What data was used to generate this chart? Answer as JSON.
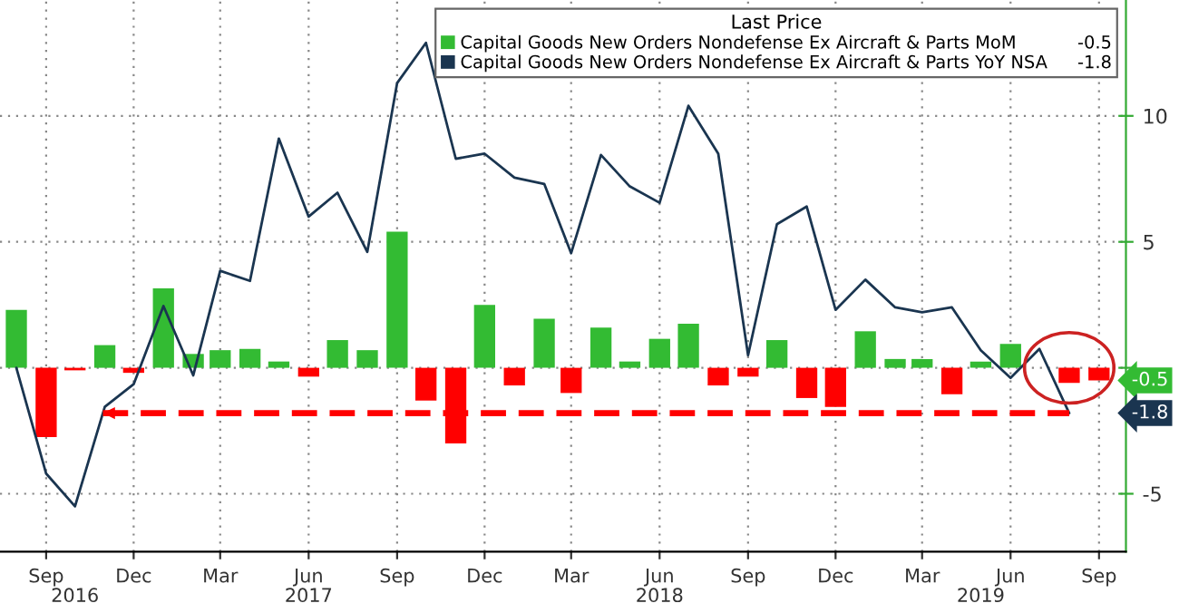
{
  "chart_data": {
    "type": "bar",
    "x": [
      "2016-08",
      "2016-09",
      "2016-10",
      "2016-11",
      "2016-12",
      "2017-01",
      "2017-02",
      "2017-03",
      "2017-04",
      "2017-05",
      "2017-06",
      "2017-07",
      "2017-08",
      "2017-09",
      "2017-10",
      "2017-11",
      "2017-12",
      "2018-01",
      "2018-02",
      "2018-03",
      "2018-04",
      "2018-05",
      "2018-06",
      "2018-07",
      "2018-08",
      "2018-09",
      "2018-10",
      "2018-11",
      "2018-12",
      "2019-01",
      "2019-02",
      "2019-03",
      "2019-04",
      "2019-05",
      "2019-06",
      "2019-07",
      "2019-08",
      "2019-09"
    ],
    "series": [
      {
        "name": "Capital Goods New Orders Nondefense Ex Aircraft & Parts MoM",
        "color": "#33bb33",
        "values": [
          2.3,
          -2.75,
          -0.1,
          0.9,
          -0.2,
          3.15,
          0.55,
          0.7,
          0.75,
          0.25,
          -0.35,
          1.1,
          0.7,
          5.4,
          -1.3,
          -3.0,
          2.5,
          -0.7,
          1.95,
          -1.0,
          1.6,
          0.25,
          1.15,
          1.75,
          -0.7,
          -0.35,
          1.1,
          -1.2,
          -1.55,
          1.45,
          0.35,
          0.35,
          -1.05,
          0.25,
          0.95,
          0.0,
          -0.6,
          -0.5
        ],
        "colors": [
          "#33bb33",
          "#ff0000",
          "#ff0000",
          "#33bb33",
          "#ff0000",
          "#33bb33",
          "#33bb33",
          "#33bb33",
          "#33bb33",
          "#33bb33",
          "#ff0000",
          "#33bb33",
          "#33bb33",
          "#33bb33",
          "#ff0000",
          "#ff0000",
          "#33bb33",
          "#ff0000",
          "#33bb33",
          "#ff0000",
          "#33bb33",
          "#33bb33",
          "#33bb33",
          "#33bb33",
          "#ff0000",
          "#ff0000",
          "#33bb33",
          "#ff0000",
          "#ff0000",
          "#33bb33",
          "#33bb33",
          "#33bb33",
          "#ff0000",
          "#33bb33",
          "#33bb33",
          "#33bb33",
          "#ff0000",
          "#ff0000"
        ],
        "value_labels": [
          null,
          null,
          null,
          null,
          null,
          null,
          null,
          null,
          null,
          null,
          null,
          null,
          null,
          null,
          null,
          null,
          null,
          null,
          null,
          null,
          null,
          null,
          null,
          null,
          null,
          null,
          null,
          null,
          null,
          null,
          null,
          null,
          null,
          null,
          null,
          null,
          null,
          null
        ]
      },
      {
        "name": "Capital Goods New Orders Nondefense Ex Aircraft & Parts YoY NSA",
        "type": "line",
        "color": "#1a3550",
        "x": [
          "2016-08",
          "2016-09",
          "2016-10",
          "2016-11",
          "2016-12",
          "2017-01",
          "2017-02",
          "2017-03",
          "2017-04",
          "2017-05",
          "2017-06",
          "2017-07",
          "2017-08",
          "2017-09",
          "2017-10",
          "2017-11",
          "2017-12",
          "2018-01",
          "2018-02",
          "2018-03",
          "2018-04",
          "2018-05",
          "2018-06",
          "2018-07",
          "2018-08",
          "2018-09",
          "2018-10",
          "2018-11",
          "2018-12",
          "2019-01",
          "2019-02",
          "2019-03",
          "2019-04",
          "2019-05",
          "2019-06",
          "2019-07",
          "2019-08"
        ],
        "values": [
          0.0,
          -4.2,
          -5.5,
          -1.55,
          -0.65,
          2.45,
          -0.3,
          3.85,
          3.45,
          9.1,
          6.0,
          6.95,
          4.6,
          11.3,
          12.9,
          8.3,
          8.5,
          7.55,
          7.3,
          4.55,
          8.45,
          7.2,
          6.55,
          10.4,
          8.5,
          0.5,
          5.7,
          6.4,
          2.3,
          3.5,
          2.4,
          2.2,
          2.4,
          0.7,
          -0.4,
          0.75,
          -1.8
        ],
        "value_labels": [
          null,
          null,
          null,
          null,
          null,
          null,
          null,
          null,
          null,
          null,
          null,
          null,
          null,
          null,
          null,
          null,
          null,
          null,
          null,
          null,
          null,
          null,
          null,
          null,
          null,
          null,
          null,
          null,
          null,
          null,
          null,
          null,
          null,
          null,
          null,
          null,
          null
        ]
      }
    ],
    "annotations": [
      "-0.5",
      "-1.8"
    ],
    "legend_title": "Last Price",
    "legend": "top right",
    "grid": true,
    "ref_lines": [
      {
        "axis": "y",
        "value": -1.8,
        "color": "#ff0000",
        "line_style": "dashed"
      }
    ],
    "xlim": [
      "2016-07-15",
      "2019-09-29"
    ],
    "xticks": [
      {
        "value": "2016-09",
        "label": "Sep"
      },
      {
        "value": "2016-12",
        "label": "Dec"
      },
      {
        "value": "2017-03",
        "label": "Mar"
      },
      {
        "value": "2017-06",
        "label": "Jun"
      },
      {
        "value": "2017-09",
        "label": "Sep"
      },
      {
        "value": "2017-12",
        "label": "Dec"
      },
      {
        "value": "2018-03",
        "label": "Mar"
      },
      {
        "value": "2018-06",
        "label": "Jun"
      },
      {
        "value": "2018-09",
        "label": "Sep"
      },
      {
        "value": "2018-12",
        "label": "Dec"
      },
      {
        "value": "2019-03",
        "label": "Mar"
      },
      {
        "value": "2019-06",
        "label": "Jun"
      },
      {
        "value": "2019-09",
        "label": "Sep"
      }
    ],
    "x2lim": [
      "2016-07-15",
      "2019-09-29"
    ],
    "x2ticks": [
      {
        "value": "2016-10",
        "label": "2016"
      },
      {
        "value": "2017-06",
        "label": "2017"
      },
      {
        "value": "2018-06",
        "label": "2018"
      },
      {
        "value": "2019-05",
        "label": "2019"
      }
    ],
    "ylim": [
      -7.3,
      14.6
    ],
    "yticks": [
      -5,
      {
        "value": 0,
        "label": null
      },
      5,
      10
    ]
  }
}
